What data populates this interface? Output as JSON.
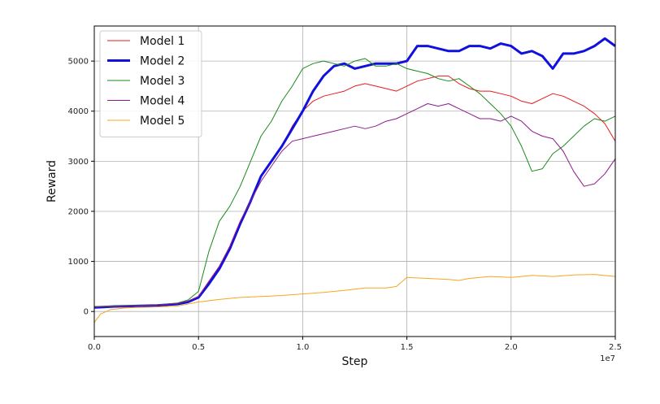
{
  "chart_data": {
    "type": "line",
    "title": "",
    "xlabel": "Step",
    "ylabel": "Reward",
    "x_offset_label": "1e7",
    "xlim": [
      0,
      2.5
    ],
    "ylim": [
      -500,
      5700
    ],
    "xticks": [
      0.0,
      0.5,
      1.0,
      1.5,
      2.0,
      2.5
    ],
    "xtick_labels": [
      "0.0",
      "0.5",
      "1.0",
      "1.5",
      "2.0",
      "2.5"
    ],
    "yticks": [
      0,
      1000,
      2000,
      3000,
      4000,
      5000
    ],
    "ytick_labels": [
      "0",
      "1000",
      "2000",
      "3000",
      "4000",
      "5000"
    ],
    "grid": true,
    "legend_position": "top-left",
    "series": [
      {
        "name": "Model 1",
        "color": "#e8191d",
        "width": 1.0,
        "points": [
          [
            0.0,
            90
          ],
          [
            0.1,
            110
          ],
          [
            0.2,
            120
          ],
          [
            0.3,
            130
          ],
          [
            0.4,
            160
          ],
          [
            0.45,
            200
          ],
          [
            0.5,
            300
          ],
          [
            0.55,
            600
          ],
          [
            0.6,
            900
          ],
          [
            0.65,
            1300
          ],
          [
            0.7,
            1800
          ],
          [
            0.75,
            2200
          ],
          [
            0.8,
            2700
          ],
          [
            0.85,
            3000
          ],
          [
            0.9,
            3300
          ],
          [
            0.95,
            3700
          ],
          [
            1.0,
            4000
          ],
          [
            1.05,
            4200
          ],
          [
            1.1,
            4300
          ],
          [
            1.15,
            4350
          ],
          [
            1.2,
            4400
          ],
          [
            1.25,
            4500
          ],
          [
            1.3,
            4550
          ],
          [
            1.35,
            4500
          ],
          [
            1.4,
            4450
          ],
          [
            1.45,
            4400
          ],
          [
            1.5,
            4500
          ],
          [
            1.55,
            4600
          ],
          [
            1.6,
            4650
          ],
          [
            1.65,
            4700
          ],
          [
            1.7,
            4700
          ],
          [
            1.75,
            4550
          ],
          [
            1.8,
            4450
          ],
          [
            1.85,
            4400
          ],
          [
            1.9,
            4400
          ],
          [
            1.95,
            4350
          ],
          [
            2.0,
            4300
          ],
          [
            2.05,
            4200
          ],
          [
            2.1,
            4150
          ],
          [
            2.15,
            4250
          ],
          [
            2.2,
            4350
          ],
          [
            2.25,
            4300
          ],
          [
            2.3,
            4200
          ],
          [
            2.35,
            4100
          ],
          [
            2.4,
            3950
          ],
          [
            2.45,
            3750
          ],
          [
            2.5,
            3400
          ]
        ]
      },
      {
        "name": "Model 2",
        "color": "#1111dd",
        "width": 3.0,
        "points": [
          [
            0.0,
            80
          ],
          [
            0.1,
            100
          ],
          [
            0.2,
            110
          ],
          [
            0.3,
            120
          ],
          [
            0.4,
            150
          ],
          [
            0.45,
            190
          ],
          [
            0.5,
            280
          ],
          [
            0.55,
            550
          ],
          [
            0.6,
            850
          ],
          [
            0.65,
            1250
          ],
          [
            0.7,
            1750
          ],
          [
            0.75,
            2200
          ],
          [
            0.8,
            2700
          ],
          [
            0.85,
            3000
          ],
          [
            0.9,
            3300
          ],
          [
            0.95,
            3650
          ],
          [
            1.0,
            4000
          ],
          [
            1.05,
            4400
          ],
          [
            1.1,
            4700
          ],
          [
            1.15,
            4900
          ],
          [
            1.2,
            4950
          ],
          [
            1.25,
            4850
          ],
          [
            1.3,
            4900
          ],
          [
            1.35,
            4950
          ],
          [
            1.4,
            4950
          ],
          [
            1.45,
            4950
          ],
          [
            1.5,
            5000
          ],
          [
            1.55,
            5300
          ],
          [
            1.6,
            5300
          ],
          [
            1.65,
            5250
          ],
          [
            1.7,
            5200
          ],
          [
            1.75,
            5200
          ],
          [
            1.8,
            5300
          ],
          [
            1.85,
            5300
          ],
          [
            1.9,
            5250
          ],
          [
            1.95,
            5350
          ],
          [
            2.0,
            5300
          ],
          [
            2.05,
            5150
          ],
          [
            2.1,
            5200
          ],
          [
            2.15,
            5100
          ],
          [
            2.2,
            4850
          ],
          [
            2.25,
            5150
          ],
          [
            2.3,
            5150
          ],
          [
            2.35,
            5200
          ],
          [
            2.4,
            5300
          ],
          [
            2.45,
            5450
          ],
          [
            2.5,
            5300
          ]
        ]
      },
      {
        "name": "Model 3",
        "color": "#1a8a1a",
        "width": 1.0,
        "points": [
          [
            0.0,
            100
          ],
          [
            0.1,
            110
          ],
          [
            0.2,
            120
          ],
          [
            0.3,
            130
          ],
          [
            0.4,
            170
          ],
          [
            0.45,
            230
          ],
          [
            0.5,
            400
          ],
          [
            0.55,
            1200
          ],
          [
            0.6,
            1800
          ],
          [
            0.65,
            2100
          ],
          [
            0.7,
            2500
          ],
          [
            0.75,
            3000
          ],
          [
            0.8,
            3500
          ],
          [
            0.85,
            3800
          ],
          [
            0.9,
            4200
          ],
          [
            0.95,
            4500
          ],
          [
            1.0,
            4850
          ],
          [
            1.05,
            4950
          ],
          [
            1.1,
            5000
          ],
          [
            1.15,
            4950
          ],
          [
            1.2,
            4900
          ],
          [
            1.25,
            5000
          ],
          [
            1.3,
            5050
          ],
          [
            1.35,
            4900
          ],
          [
            1.4,
            4900
          ],
          [
            1.45,
            4950
          ],
          [
            1.5,
            4850
          ],
          [
            1.55,
            4800
          ],
          [
            1.6,
            4750
          ],
          [
            1.65,
            4650
          ],
          [
            1.7,
            4600
          ],
          [
            1.75,
            4650
          ],
          [
            1.8,
            4500
          ],
          [
            1.85,
            4350
          ],
          [
            1.9,
            4150
          ],
          [
            1.95,
            3950
          ],
          [
            2.0,
            3700
          ],
          [
            2.05,
            3300
          ],
          [
            2.1,
            2800
          ],
          [
            2.15,
            2850
          ],
          [
            2.2,
            3150
          ],
          [
            2.25,
            3300
          ],
          [
            2.3,
            3500
          ],
          [
            2.35,
            3700
          ],
          [
            2.4,
            3850
          ],
          [
            2.45,
            3800
          ],
          [
            2.5,
            3900
          ]
        ]
      },
      {
        "name": "Model 4",
        "color": "#8c1a8c",
        "width": 1.0,
        "points": [
          [
            0.0,
            90
          ],
          [
            0.1,
            100
          ],
          [
            0.2,
            115
          ],
          [
            0.3,
            125
          ],
          [
            0.4,
            160
          ],
          [
            0.45,
            210
          ],
          [
            0.5,
            300
          ],
          [
            0.55,
            600
          ],
          [
            0.6,
            900
          ],
          [
            0.65,
            1300
          ],
          [
            0.7,
            1800
          ],
          [
            0.75,
            2200
          ],
          [
            0.8,
            2600
          ],
          [
            0.85,
            2900
          ],
          [
            0.9,
            3200
          ],
          [
            0.95,
            3400
          ],
          [
            1.0,
            3450
          ],
          [
            1.05,
            3500
          ],
          [
            1.1,
            3550
          ],
          [
            1.15,
            3600
          ],
          [
            1.2,
            3650
          ],
          [
            1.25,
            3700
          ],
          [
            1.3,
            3650
          ],
          [
            1.35,
            3700
          ],
          [
            1.4,
            3800
          ],
          [
            1.45,
            3850
          ],
          [
            1.5,
            3950
          ],
          [
            1.55,
            4050
          ],
          [
            1.6,
            4150
          ],
          [
            1.65,
            4100
          ],
          [
            1.7,
            4150
          ],
          [
            1.75,
            4050
          ],
          [
            1.8,
            3950
          ],
          [
            1.85,
            3850
          ],
          [
            1.9,
            3850
          ],
          [
            1.95,
            3800
          ],
          [
            2.0,
            3900
          ],
          [
            2.05,
            3800
          ],
          [
            2.1,
            3600
          ],
          [
            2.15,
            3500
          ],
          [
            2.2,
            3450
          ],
          [
            2.25,
            3200
          ],
          [
            2.3,
            2800
          ],
          [
            2.35,
            2500
          ],
          [
            2.4,
            2550
          ],
          [
            2.45,
            2750
          ],
          [
            2.5,
            3050
          ]
        ]
      },
      {
        "name": "Model 5",
        "color": "#f5a623",
        "width": 1.0,
        "points": [
          [
            0.0,
            -220
          ],
          [
            0.03,
            -50
          ],
          [
            0.08,
            40
          ],
          [
            0.15,
            70
          ],
          [
            0.2,
            80
          ],
          [
            0.3,
            90
          ],
          [
            0.4,
            110
          ],
          [
            0.45,
            150
          ],
          [
            0.5,
            190
          ],
          [
            0.6,
            240
          ],
          [
            0.7,
            280
          ],
          [
            0.8,
            300
          ],
          [
            0.9,
            320
          ],
          [
            1.0,
            350
          ],
          [
            1.1,
            380
          ],
          [
            1.2,
            420
          ],
          [
            1.3,
            470
          ],
          [
            1.4,
            470
          ],
          [
            1.45,
            500
          ],
          [
            1.5,
            680
          ],
          [
            1.6,
            660
          ],
          [
            1.7,
            640
          ],
          [
            1.75,
            620
          ],
          [
            1.8,
            660
          ],
          [
            1.9,
            700
          ],
          [
            2.0,
            680
          ],
          [
            2.05,
            700
          ],
          [
            2.1,
            720
          ],
          [
            2.2,
            700
          ],
          [
            2.3,
            730
          ],
          [
            2.4,
            740
          ],
          [
            2.5,
            700
          ]
        ]
      }
    ]
  }
}
